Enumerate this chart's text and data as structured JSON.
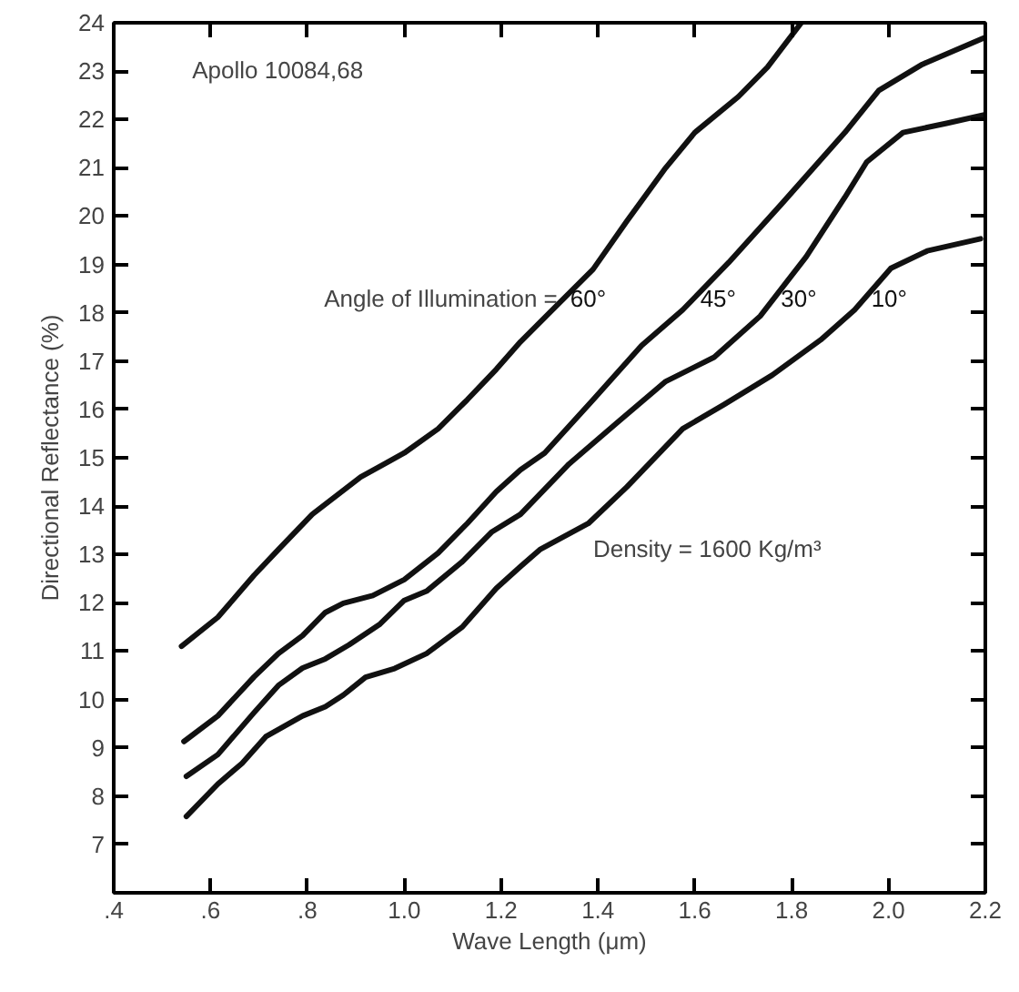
{
  "chart_data": {
    "type": "line",
    "xlabel": "Wave Length (μm)",
    "ylabel": "Directional Reflectance (%)",
    "xlim": [
      0.4,
      2.2
    ],
    "ylim": [
      6,
      24
    ],
    "xticks": [
      {
        "value": 0.4,
        "label": ".4"
      },
      {
        "value": 0.6,
        "label": ".6"
      },
      {
        "value": 0.8,
        "label": ".8"
      },
      {
        "value": 1.0,
        "label": "1.0"
      },
      {
        "value": 1.2,
        "label": "1.2"
      },
      {
        "value": 1.4,
        "label": "1.4"
      },
      {
        "value": 1.6,
        "label": "1.6"
      },
      {
        "value": 1.8,
        "label": "1.8"
      },
      {
        "value": 2.0,
        "label": "2.0"
      },
      {
        "value": 2.2,
        "label": "2.2"
      }
    ],
    "yticks": [
      7,
      8,
      9,
      10,
      11,
      12,
      13,
      14,
      15,
      16,
      17,
      18,
      19,
      20,
      21,
      22,
      23,
      24
    ],
    "grid": false,
    "legend": false,
    "marker": "none",
    "line_style": "solid",
    "annotations": [
      "Apollo 10084,68",
      "Angle of Illumination =",
      "Density = 1600 Kg/m³"
    ],
    "series": [
      {
        "name": "60°",
        "color": "#111111",
        "x": [
          0.54,
          0.615,
          0.69,
          0.74,
          0.81,
          0.91,
          1.0,
          1.07,
          1.13,
          1.19,
          1.24,
          1.3,
          1.39,
          1.46,
          1.54,
          1.6,
          1.69,
          1.75,
          1.82
        ],
        "values": [
          11.1,
          11.7,
          12.57,
          13.1,
          13.83,
          14.6,
          15.1,
          15.6,
          16.2,
          16.83,
          17.4,
          18.0,
          18.9,
          19.9,
          21.0,
          21.73,
          22.47,
          23.08,
          24.0
        ]
      },
      {
        "name": "45°",
        "color": "#111111",
        "x": [
          0.545,
          0.615,
          0.69,
          0.74,
          0.79,
          0.837,
          0.874,
          0.935,
          1.0,
          1.07,
          1.13,
          1.19,
          1.24,
          1.29,
          1.39,
          1.49,
          1.575,
          1.67,
          1.78,
          1.91,
          1.98,
          2.07,
          2.2
        ],
        "values": [
          9.13,
          9.66,
          10.47,
          10.95,
          11.32,
          11.8,
          11.99,
          12.15,
          12.48,
          13.03,
          13.64,
          14.3,
          14.75,
          15.1,
          16.2,
          17.32,
          18.06,
          19.04,
          20.26,
          21.73,
          22.6,
          23.14,
          23.7
        ]
      },
      {
        "name": "30°",
        "color": "#111111",
        "x": [
          0.55,
          0.615,
          0.69,
          0.74,
          0.79,
          0.837,
          0.886,
          0.95,
          1.0,
          1.046,
          1.12,
          1.18,
          1.24,
          1.34,
          1.44,
          1.54,
          1.64,
          1.735,
          1.83,
          1.91,
          1.955,
          2.03,
          2.12,
          2.2
        ],
        "values": [
          8.41,
          8.86,
          9.73,
          10.29,
          10.65,
          10.84,
          11.13,
          11.56,
          12.05,
          12.24,
          12.85,
          13.46,
          13.83,
          14.87,
          15.73,
          16.58,
          17.08,
          17.93,
          19.16,
          20.39,
          21.12,
          21.73,
          21.92,
          22.1
        ]
      },
      {
        "name": "10°",
        "color": "#111111",
        "x": [
          0.55,
          0.615,
          0.665,
          0.714,
          0.79,
          0.837,
          0.874,
          0.92,
          0.98,
          1.046,
          1.12,
          1.19,
          1.24,
          1.28,
          1.38,
          1.46,
          1.575,
          1.66,
          1.76,
          1.86,
          1.93,
          2.005,
          2.08,
          2.19
        ],
        "values": [
          7.58,
          8.25,
          8.68,
          9.23,
          9.66,
          9.85,
          10.09,
          10.46,
          10.64,
          10.95,
          11.5,
          12.3,
          12.75,
          13.1,
          13.64,
          14.4,
          15.6,
          16.1,
          16.71,
          17.44,
          18.06,
          18.92,
          19.28,
          19.53
        ]
      }
    ]
  }
}
